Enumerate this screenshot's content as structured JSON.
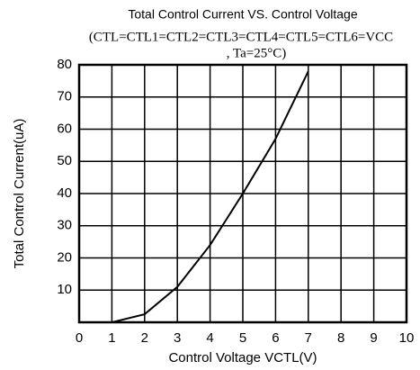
{
  "chart_data": {
    "type": "line",
    "title": "Total Control Current VS. Control Voltage",
    "subtitle": [
      "(CTL=CTL1=CTL2=CTL3=CTL4=CTL5=CTL6=VCC",
      ", Ta=25°C)"
    ],
    "x_label": "Control Voltage VCTL(V)",
    "y_label": "Total Control Current(uA)",
    "x": [
      1,
      2,
      3,
      4,
      5,
      6,
      7
    ],
    "series": [
      {
        "color": "#000000",
        "values": [
          0,
          2.5,
          11,
          24,
          40,
          57,
          78
        ]
      }
    ],
    "xlim": [
      0,
      10
    ],
    "xticks": [
      0,
      1,
      2,
      3,
      4,
      5,
      6,
      7,
      8,
      9,
      10
    ],
    "ylim": [
      0,
      80
    ],
    "yticks": [
      10,
      20,
      30,
      40,
      50,
      60,
      70,
      80
    ],
    "grid": true
  }
}
